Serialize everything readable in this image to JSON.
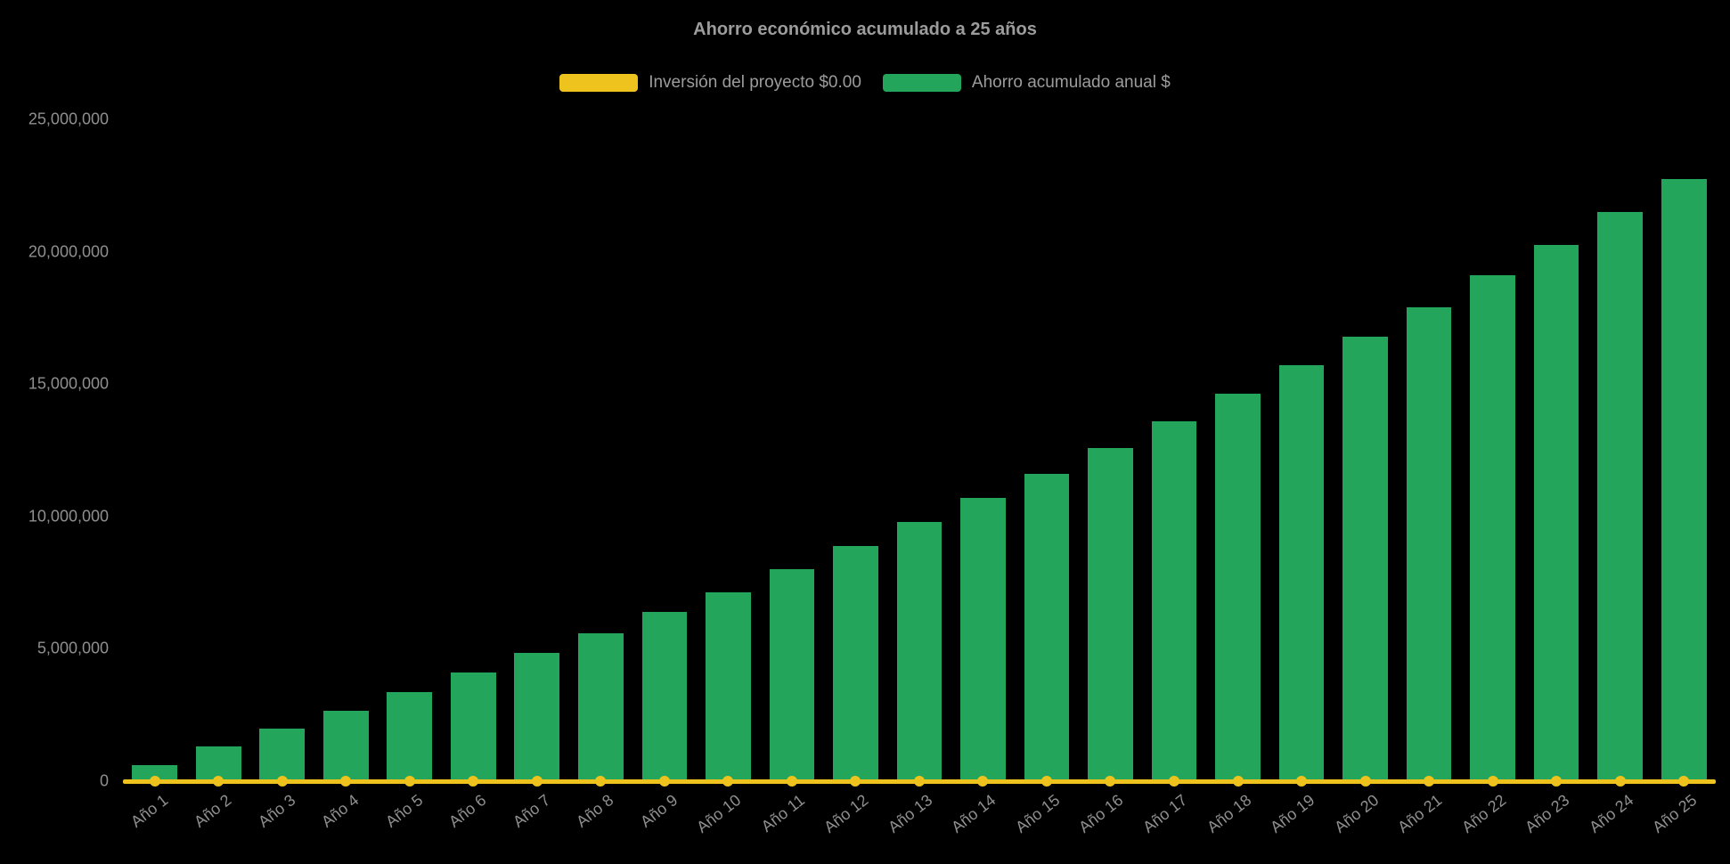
{
  "chart_data": {
    "type": "bar",
    "title": "Ahorro económico acumulado a 25 años",
    "categories": [
      "Año 1",
      "Año 2",
      "Año 3",
      "Año 4",
      "Año 5",
      "Año 6",
      "Año 7",
      "Año 8",
      "Año 9",
      "Año 10",
      "Año 11",
      "Año 12",
      "Año 13",
      "Año 14",
      "Año 15",
      "Año 16",
      "Año 17",
      "Año 18",
      "Año 19",
      "Año 20",
      "Año 21",
      "Año 22",
      "Año 23",
      "Año 24",
      "Año 25"
    ],
    "series": [
      {
        "name": "Inversión del proyecto $0.00",
        "chart_type": "line",
        "color": "#EEC31D",
        "values": [
          0,
          0,
          0,
          0,
          0,
          0,
          0,
          0,
          0,
          0,
          0,
          0,
          0,
          0,
          0,
          0,
          0,
          0,
          0,
          0,
          0,
          0,
          0,
          0,
          0
        ]
      },
      {
        "name": "Ahorro acumulado anual $",
        "chart_type": "column",
        "color": "#23A65B",
        "values": [
          600000,
          1300000,
          2000000,
          2650000,
          3350000,
          4100000,
          4850000,
          5600000,
          6400000,
          7150000,
          8000000,
          8900000,
          9800000,
          10700000,
          11600000,
          12600000,
          13600000,
          14650000,
          15700000,
          16800000,
          17900000,
          19100000,
          20250000,
          21500000,
          22750000
        ]
      }
    ],
    "ylim": [
      0,
      25000000
    ],
    "ytick_interval": 5000000,
    "ytick_labels": [
      "0",
      "5,000,000",
      "10,000,000",
      "15,000,000",
      "20,000,000",
      "25,000,000"
    ],
    "xlabel_rotation": -38,
    "grid": false,
    "legend_position": "top",
    "background": "#000000",
    "text_color": "#8F8F8F",
    "title_color": "#9C9C9C"
  }
}
